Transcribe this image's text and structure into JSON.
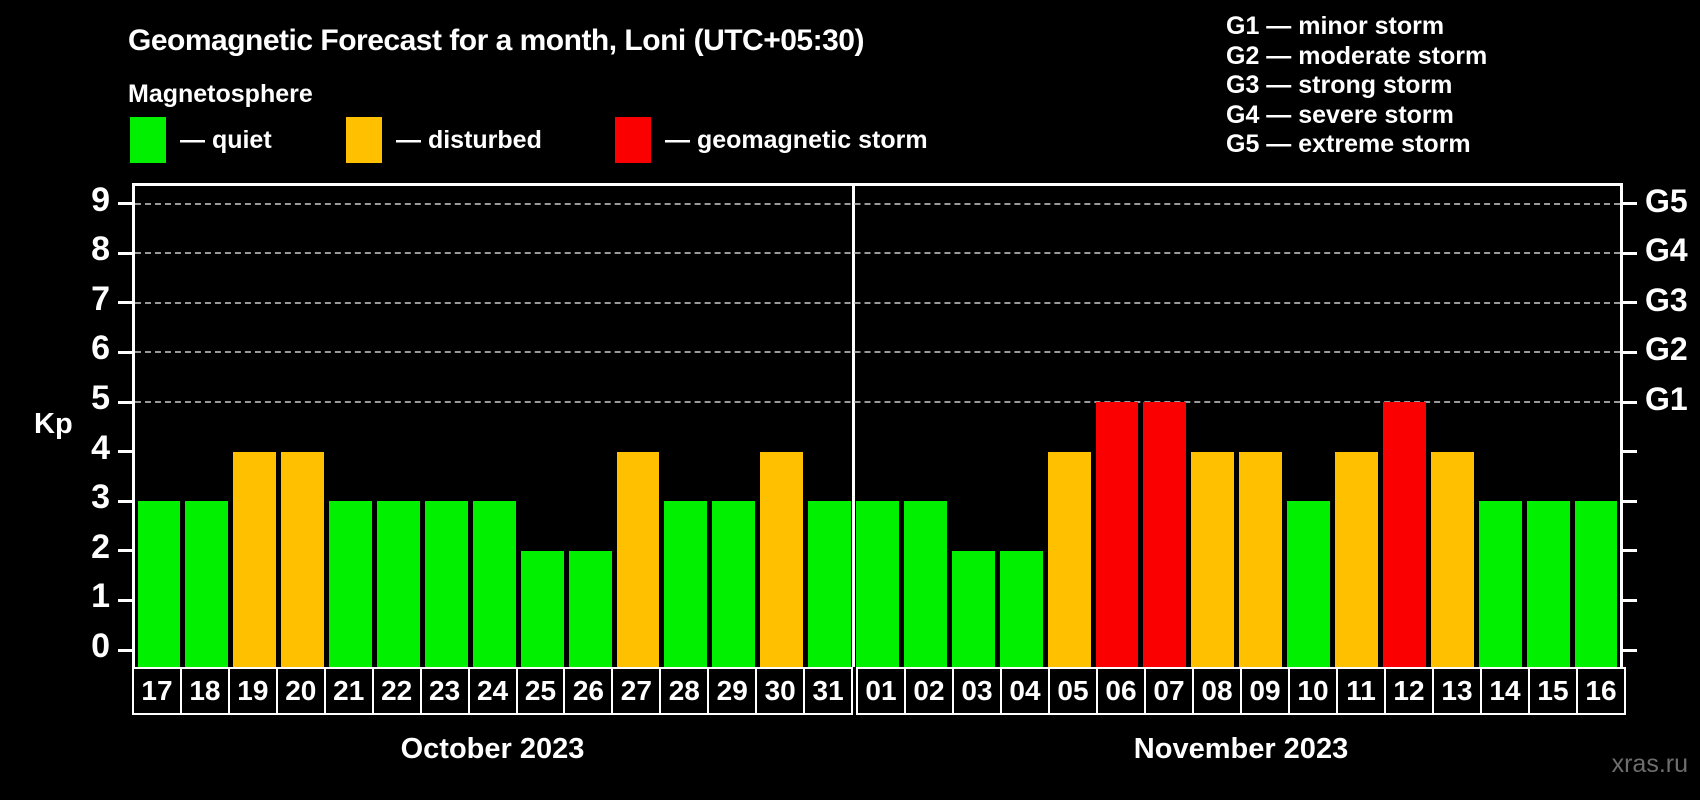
{
  "header": {
    "title": "Geomagnetic Forecast for a month, Loni (UTC+05:30)",
    "subtitle": "Magnetosphere"
  },
  "legend": {
    "items": [
      {
        "name": "quiet",
        "label": "— quiet",
        "color": "#00f000"
      },
      {
        "name": "disturbed",
        "label": "— disturbed",
        "color": "#ffc000"
      },
      {
        "name": "geomagnetic-storm",
        "label": "— geomagnetic storm",
        "color": "#fb0000"
      }
    ]
  },
  "g_scale_legend": [
    "G1 — minor storm",
    "G2 — moderate storm",
    "G3 — strong storm",
    "G4 — severe storm",
    "G5 — extreme storm"
  ],
  "watermark": "xras.ru",
  "chart_data": {
    "type": "bar",
    "title": "Geomagnetic Forecast for a month, Loni (UTC+05:30)",
    "xlabel": "",
    "ylabel": "Kp",
    "ylim": [
      0,
      9
    ],
    "y_ticks": [
      0,
      1,
      2,
      3,
      4,
      5,
      6,
      7,
      8,
      9
    ],
    "gridlines_at_kp": [
      5,
      6,
      7,
      8,
      9
    ],
    "grid": "dashed horizontal at Kp 5-9 only",
    "legend_position": "top-left",
    "right_axis_labels": [
      {
        "kp": 5,
        "label": "G1"
      },
      {
        "kp": 6,
        "label": "G2"
      },
      {
        "kp": 7,
        "label": "G3"
      },
      {
        "kp": 8,
        "label": "G4"
      },
      {
        "kp": 9,
        "label": "G5"
      }
    ],
    "status_colors": {
      "quiet": "#00f000",
      "disturbed": "#ffc000",
      "storm": "#fb0000"
    },
    "months": [
      {
        "label": "October 2023",
        "days": [
          {
            "day": "17",
            "kp": 3,
            "status": "quiet"
          },
          {
            "day": "18",
            "kp": 3,
            "status": "quiet"
          },
          {
            "day": "19",
            "kp": 4,
            "status": "disturbed"
          },
          {
            "day": "20",
            "kp": 4,
            "status": "disturbed"
          },
          {
            "day": "21",
            "kp": 3,
            "status": "quiet"
          },
          {
            "day": "22",
            "kp": 3,
            "status": "quiet"
          },
          {
            "day": "23",
            "kp": 3,
            "status": "quiet"
          },
          {
            "day": "24",
            "kp": 3,
            "status": "quiet"
          },
          {
            "day": "25",
            "kp": 2,
            "status": "quiet"
          },
          {
            "day": "26",
            "kp": 2,
            "status": "quiet"
          },
          {
            "day": "27",
            "kp": 4,
            "status": "disturbed"
          },
          {
            "day": "28",
            "kp": 3,
            "status": "quiet"
          },
          {
            "day": "29",
            "kp": 3,
            "status": "quiet"
          },
          {
            "day": "30",
            "kp": 4,
            "status": "disturbed"
          },
          {
            "day": "31",
            "kp": 3,
            "status": "quiet"
          }
        ]
      },
      {
        "label": "November 2023",
        "days": [
          {
            "day": "01",
            "kp": 3,
            "status": "quiet"
          },
          {
            "day": "02",
            "kp": 3,
            "status": "quiet"
          },
          {
            "day": "03",
            "kp": 2,
            "status": "quiet"
          },
          {
            "day": "04",
            "kp": 2,
            "status": "quiet"
          },
          {
            "day": "05",
            "kp": 4,
            "status": "disturbed"
          },
          {
            "day": "06",
            "kp": 5,
            "status": "storm"
          },
          {
            "day": "07",
            "kp": 5,
            "status": "storm"
          },
          {
            "day": "08",
            "kp": 4,
            "status": "disturbed"
          },
          {
            "day": "09",
            "kp": 4,
            "status": "disturbed"
          },
          {
            "day": "10",
            "kp": 3,
            "status": "quiet"
          },
          {
            "day": "11",
            "kp": 4,
            "status": "disturbed"
          },
          {
            "day": "12",
            "kp": 5,
            "status": "storm"
          },
          {
            "day": "13",
            "kp": 4,
            "status": "disturbed"
          },
          {
            "day": "14",
            "kp": 3,
            "status": "quiet"
          },
          {
            "day": "15",
            "kp": 3,
            "status": "quiet"
          },
          {
            "day": "16",
            "kp": 3,
            "status": "quiet"
          }
        ]
      }
    ]
  }
}
